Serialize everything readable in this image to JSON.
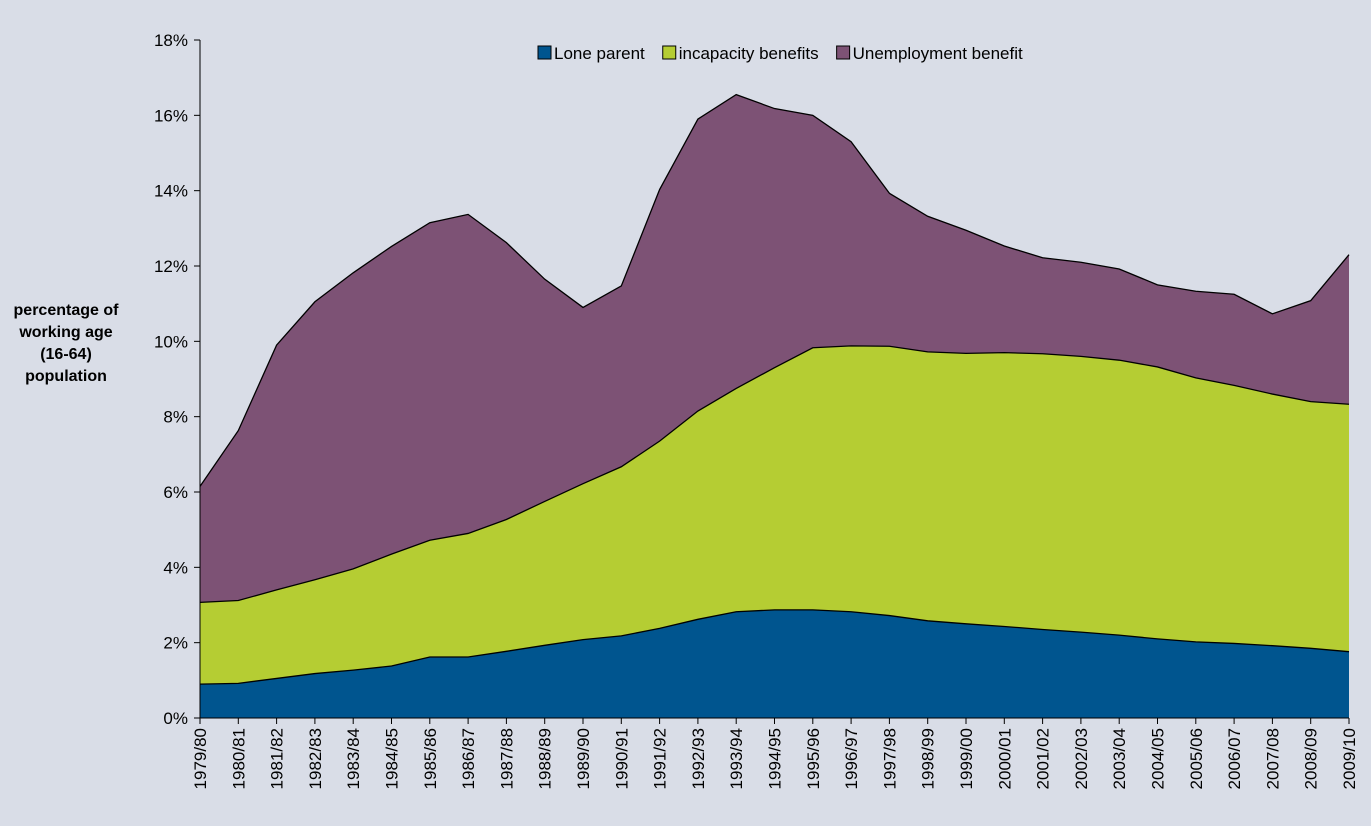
{
  "chart_data": {
    "type": "stacked_area",
    "y_label": "percentage of working age (16-64) population",
    "categories": [
      "1979/80",
      "1980/81",
      "1981/82",
      "1982/83",
      "1983/84",
      "1984/85",
      "1985/86",
      "1986/87",
      "1987/88",
      "1988/89",
      "1989/90",
      "1990/91",
      "1991/92",
      "1992/93",
      "1993/94",
      "1994/95",
      "1995/96",
      "1996/97",
      "1997/98",
      "1998/99",
      "1999/00",
      "2000/01",
      "2001/02",
      "2002/03",
      "2003/04",
      "2004/05",
      "2005/06",
      "2006/07",
      "2007/08",
      "2008/09",
      "2009/10"
    ],
    "series": [
      {
        "name": "Lone parent",
        "color": "#00558f",
        "values": [
          0.9,
          0.92,
          1.05,
          1.18,
          1.27,
          1.38,
          1.62,
          1.62,
          1.77,
          1.93,
          2.08,
          2.18,
          2.38,
          2.62,
          2.82,
          2.87,
          2.87,
          2.82,
          2.72,
          2.58,
          2.5,
          2.43,
          2.35,
          2.28,
          2.2,
          2.1,
          2.02,
          1.98,
          1.92,
          1.85,
          1.76
        ]
      },
      {
        "name": "incapacity benefits",
        "color": "#b5cd33",
        "values": [
          2.17,
          2.2,
          2.35,
          2.49,
          2.69,
          2.97,
          3.1,
          3.28,
          3.5,
          3.82,
          4.14,
          4.49,
          4.97,
          5.53,
          5.93,
          6.43,
          6.96,
          7.06,
          7.15,
          7.14,
          7.18,
          7.27,
          7.32,
          7.32,
          7.3,
          7.22,
          7.01,
          6.85,
          6.68,
          6.55,
          6.57
        ]
      },
      {
        "name": "Unemployment benefit",
        "color": "#7d5275",
        "values": [
          3.08,
          4.51,
          6.5,
          7.38,
          7.86,
          8.17,
          8.43,
          8.47,
          7.35,
          5.9,
          4.68,
          4.8,
          6.68,
          7.75,
          7.8,
          6.88,
          6.17,
          5.42,
          4.06,
          3.6,
          3.27,
          2.83,
          2.55,
          2.5,
          2.42,
          2.18,
          2.3,
          2.42,
          2.13,
          2.68,
          3.97
        ]
      }
    ],
    "ylim": [
      0,
      18
    ],
    "yticks": [
      {
        "value": 0,
        "label": "0%"
      },
      {
        "value": 2,
        "label": "2%"
      },
      {
        "value": 4,
        "label": "4%"
      },
      {
        "value": 6,
        "label": "6%"
      },
      {
        "value": 8,
        "label": "8%"
      },
      {
        "value": 10,
        "label": "10%"
      },
      {
        "value": 12,
        "label": "12%"
      },
      {
        "value": 14,
        "label": "14%"
      },
      {
        "value": 16,
        "label": "16%"
      },
      {
        "value": 18,
        "label": "18%"
      }
    ],
    "legend": "top"
  }
}
